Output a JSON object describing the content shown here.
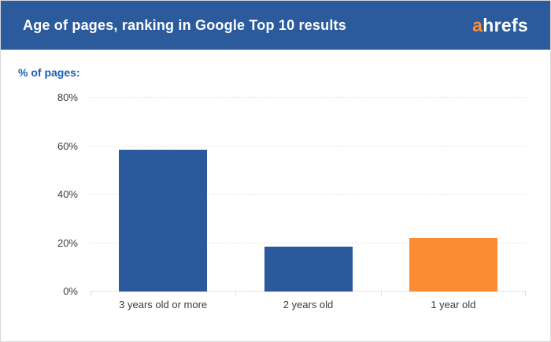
{
  "header": {
    "title": "Age of pages, ranking in Google Top 10 results",
    "logo": {
      "prefix": "a",
      "rest": "hrefs"
    }
  },
  "axis": {
    "y_title": "% of pages:"
  },
  "colors": {
    "header_bg": "#2B5B9D",
    "bar_blue": "#2A5A9C",
    "bar_orange": "#FB8C34",
    "logo_orange": "#FB8C34",
    "y_title_blue": "#1A5EB8"
  },
  "chart_data": {
    "type": "bar",
    "title": "Age of pages, ranking in Google Top 10 results",
    "ylabel": "% of pages:",
    "xlabel": "",
    "categories": [
      "3 years old or more",
      "2 years old",
      "1 year old"
    ],
    "values": [
      58.5,
      18.5,
      22
    ],
    "bar_colors": [
      "#2A5A9C",
      "#2A5A9C",
      "#FB8C34"
    ],
    "ylim": [
      0,
      80
    ],
    "yticks": [
      0,
      20,
      40,
      60,
      80
    ],
    "ytick_labels": [
      "0%",
      "20%",
      "40%",
      "60%",
      "80%"
    ],
    "grid": "horizontal-dotted",
    "legend_position": "none"
  }
}
